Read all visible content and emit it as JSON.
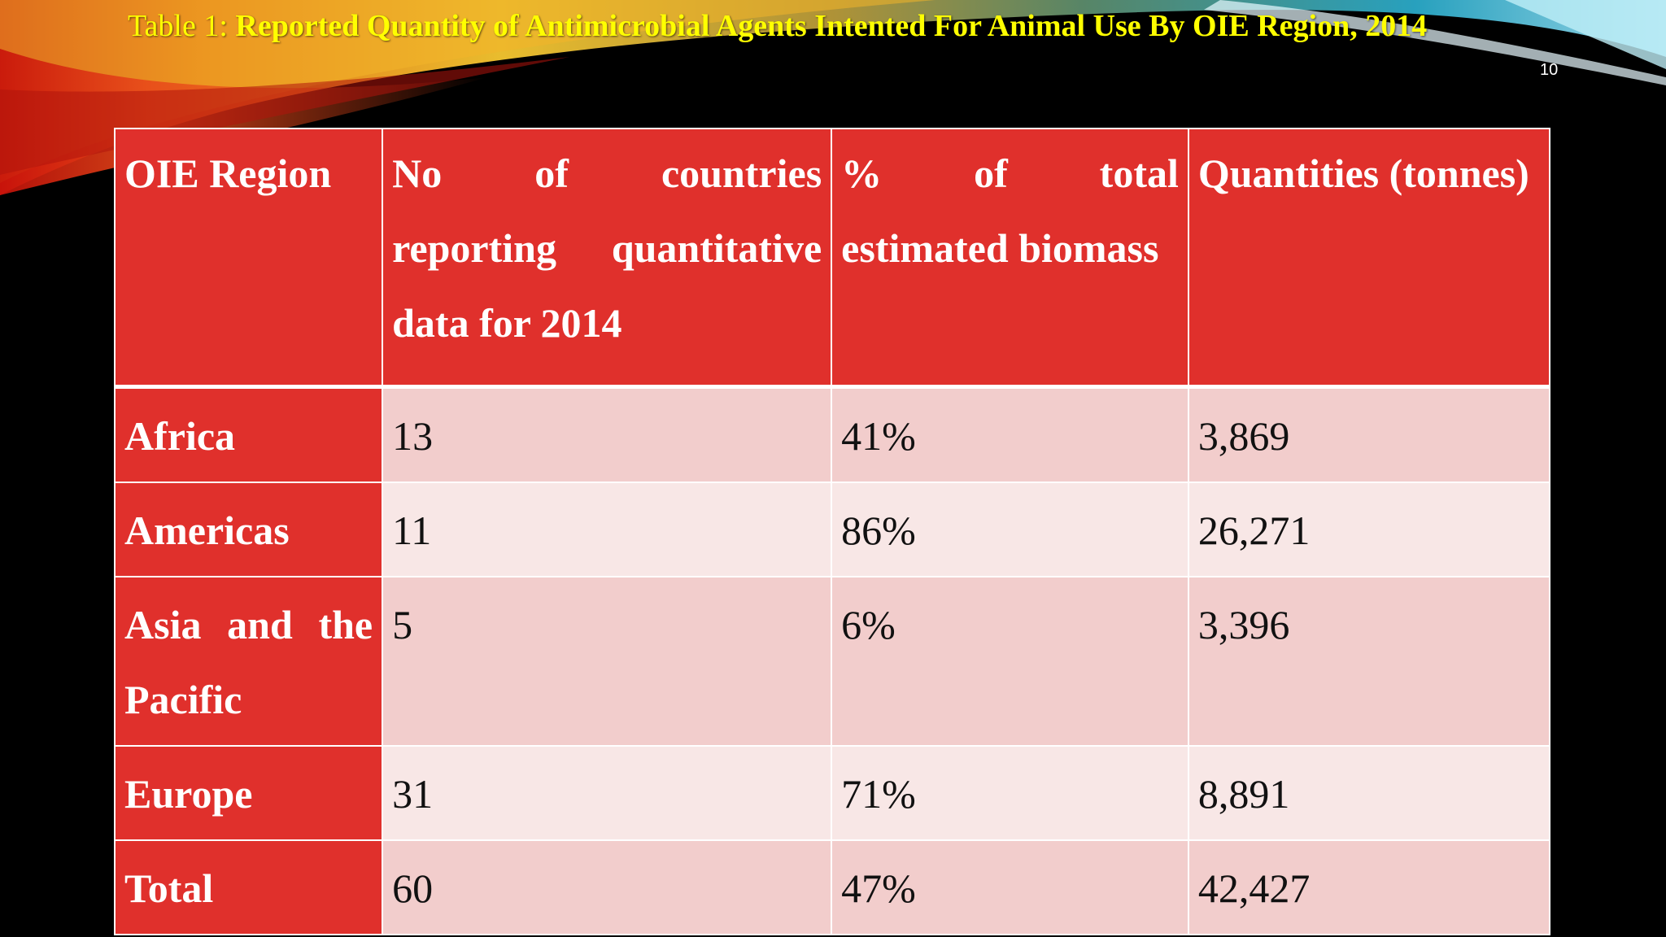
{
  "slide": {
    "title_prefix": "Table 1: ",
    "title_main": "Reported Quantity of Antimicrobial Agents Intented For Animal Use By OIE Region, 2014",
    "page_number": "10"
  },
  "table": {
    "headers": [
      "OIE Region",
      "No of countries reporting quantitative data for 2014",
      "% of total estimated biomass",
      "Quantities (tonnes)"
    ],
    "rows": [
      {
        "region": "Africa",
        "countries": "13",
        "biomass": "41%",
        "quantities": "3,869"
      },
      {
        "region": "Americas",
        "countries": "11",
        "biomass": "86%",
        "quantities": "26,271"
      },
      {
        "region": "Asia and the Pacific",
        "countries": "5",
        "biomass": "6%",
        "quantities": "3,396"
      },
      {
        "region": "Europe",
        "countries": "31",
        "biomass": "71%",
        "quantities": "8,891"
      },
      {
        "region": "Total",
        "countries": "60",
        "biomass": "47%",
        "quantities": "42,427"
      }
    ]
  },
  "colors": {
    "background": "#000000",
    "title_text": "#FFFF00",
    "header_fill": "#E0302C",
    "row_fill_dark": "#F2CDCC",
    "row_fill_light": "#F8E7E6"
  }
}
